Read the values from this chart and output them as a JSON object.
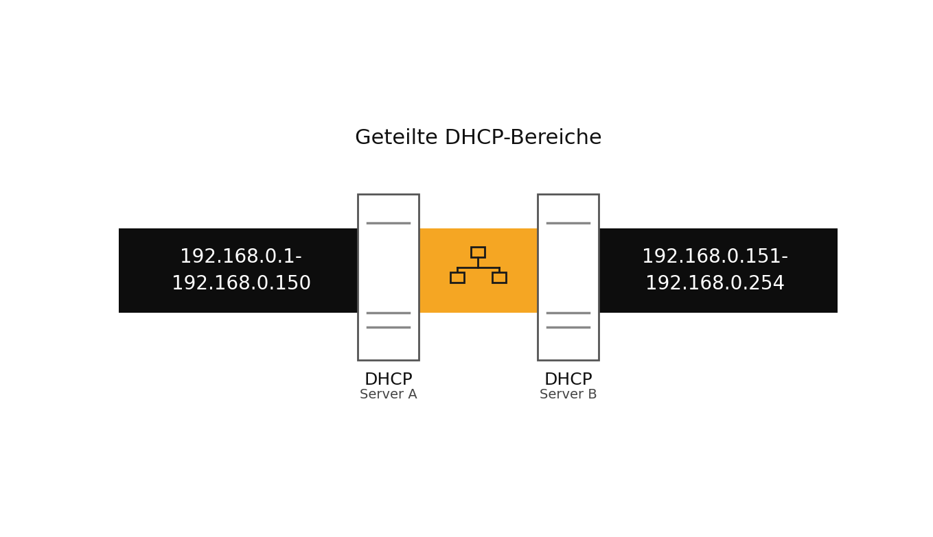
{
  "title": "Geteilte DHCP-Bereiche",
  "title_fontsize": 22,
  "bg_color": "#ffffff",
  "black_band_color": "#0d0d0d",
  "orange_color": "#F5A623",
  "server_box_color": "#ffffff",
  "server_box_edge": "#555555",
  "label_left_line1": "192.168.0.1-",
  "label_left_line2": "192.168.0.150",
  "label_right_line1": "192.168.0.151-",
  "label_right_line2": "192.168.0.254",
  "label_text_color": "#ffffff",
  "label_fontsize": 20,
  "server_a_label": "DHCP",
  "server_a_sublabel": "Server A",
  "server_b_label": "DHCP",
  "server_b_sublabel": "Server B",
  "server_label_fontsize": 18,
  "server_sublabel_fontsize": 14,
  "network_icon_color": "#1a1a1a"
}
